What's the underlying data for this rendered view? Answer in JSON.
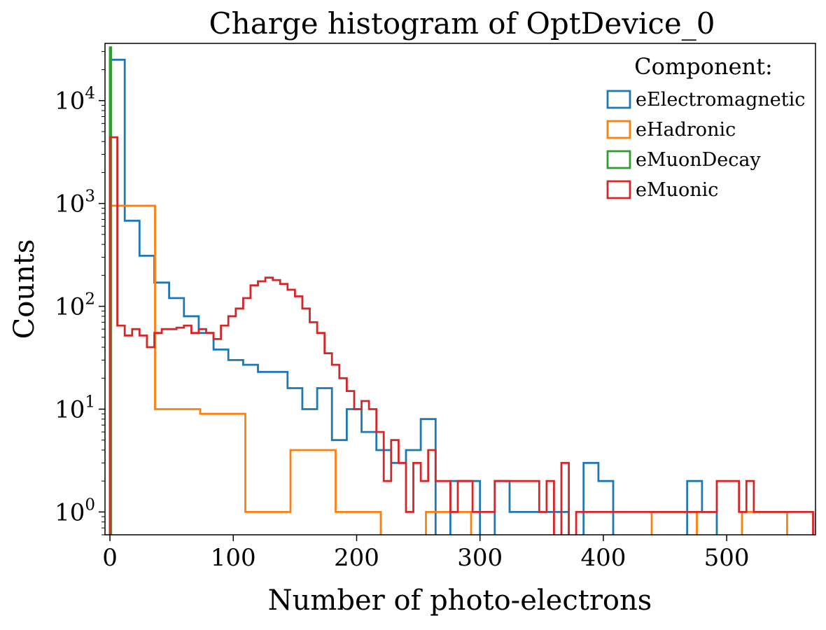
{
  "chart_data": {
    "type": "histogram",
    "title": "Charge histogram of OptDevice_0",
    "xlabel": "Number of photo-electrons",
    "ylabel": "Counts",
    "x_ticks": [
      "0",
      "100",
      "200",
      "300",
      "400",
      "500"
    ],
    "x_tick_values": [
      0,
      100,
      200,
      300,
      400,
      500
    ],
    "y_ticks": [
      {
        "base": "10",
        "exp": "0",
        "value": 1
      },
      {
        "base": "10",
        "exp": "1",
        "value": 10
      },
      {
        "base": "10",
        "exp": "2",
        "value": 100
      },
      {
        "base": "10",
        "exp": "3",
        "value": 1000
      },
      {
        "base": "10",
        "exp": "4",
        "value": 10000
      }
    ],
    "xlim": [
      -4,
      572
    ],
    "ylim": [
      0.6,
      36000
    ],
    "y_scale": "log",
    "legend": {
      "title": "Component:",
      "placement": "top-right"
    },
    "series": [
      {
        "name": "eElectromagnetic",
        "color": "#1f77b4",
        "x": [
          0,
          12,
          24,
          36,
          48,
          60,
          72,
          84,
          96,
          108,
          120,
          132,
          144,
          156,
          168,
          180,
          192,
          204,
          216,
          228,
          240,
          252,
          264,
          276,
          288,
          300,
          312,
          324,
          336,
          348,
          360,
          372,
          384,
          396,
          408,
          420,
          432,
          444,
          456,
          468,
          480,
          492
        ],
        "y": [
          25000,
          680,
          310,
          170,
          120,
          80,
          55,
          38,
          30,
          27,
          23,
          23,
          16,
          10,
          16,
          5,
          10,
          6,
          4,
          3,
          4,
          8,
          0,
          2,
          2,
          0,
          2,
          1,
          1,
          1,
          1,
          0,
          3,
          2,
          0,
          0,
          0,
          0,
          0,
          2,
          1,
          0
        ]
      },
      {
        "name": "eHadronic",
        "color": "#ff7f0e",
        "x": [
          0,
          36.6,
          73.2,
          109.8,
          146.4,
          183,
          219.6,
          256.2,
          292.8,
          329.4,
          366,
          402.6,
          439.2,
          475.8,
          512.4,
          549
        ],
        "y": [
          950,
          10,
          9,
          1,
          4,
          1,
          0,
          1,
          0,
          0,
          0,
          0,
          1,
          0,
          1,
          0
        ]
      },
      {
        "name": "eMuonDecay",
        "color": "#2ca02c",
        "x": [
          0,
          1
        ],
        "y": [
          33000,
          0
        ]
      },
      {
        "name": "eMuonic",
        "color": "#d62728",
        "x": [
          0,
          6,
          12,
          18,
          24,
          30,
          36,
          42,
          48,
          54,
          60,
          66,
          72,
          78,
          84,
          90,
          96,
          102,
          108,
          114,
          120,
          126,
          132,
          138,
          144,
          150,
          156,
          162,
          168,
          174,
          180,
          186,
          192,
          198,
          204,
          210,
          216,
          222,
          228,
          234,
          240,
          246,
          252,
          258,
          264,
          270,
          276,
          282,
          288,
          294,
          300,
          306,
          312,
          318,
          324,
          330,
          336,
          342,
          348,
          354,
          360,
          366,
          372,
          378,
          384,
          390,
          396,
          402,
          408,
          414,
          420,
          426,
          432,
          438,
          444,
          450,
          456,
          462,
          468,
          474,
          480,
          486,
          492,
          498,
          504,
          510,
          516,
          522,
          528,
          534,
          540,
          546,
          552,
          558,
          564,
          570
        ],
        "y": [
          4400,
          65,
          52,
          60,
          52,
          40,
          55,
          60,
          60,
          62,
          65,
          55,
          60,
          55,
          48,
          65,
          80,
          95,
          120,
          160,
          175,
          190,
          180,
          165,
          145,
          125,
          95,
          70,
          55,
          35,
          27,
          20,
          15,
          10,
          12,
          10,
          6,
          2,
          5,
          3,
          1,
          3,
          2,
          4,
          2,
          2,
          1,
          2,
          2,
          1,
          1,
          1,
          2,
          2,
          2,
          2,
          2,
          2,
          1,
          2,
          0,
          3,
          0,
          1,
          1,
          1,
          1,
          1,
          1,
          1,
          1,
          1,
          1,
          1,
          1,
          1,
          1,
          1,
          1,
          1,
          1,
          1,
          2,
          2,
          2,
          1,
          2,
          1,
          1,
          1,
          1,
          1,
          1,
          1,
          1,
          0
        ]
      }
    ]
  }
}
